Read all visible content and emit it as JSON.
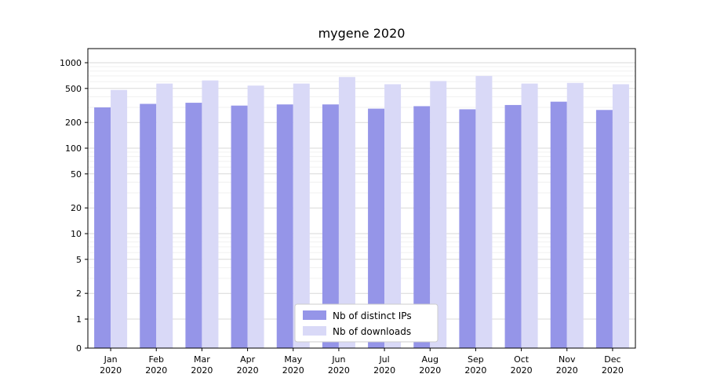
{
  "chart_data": {
    "type": "bar",
    "title": "mygene 2020",
    "categories": [
      "Jan",
      "Feb",
      "Mar",
      "Apr",
      "May",
      "Jun",
      "Jul",
      "Aug",
      "Sep",
      "Oct",
      "Nov",
      "Dec"
    ],
    "category_year": "2020",
    "series": [
      {
        "name": "Nb of distinct IPs",
        "color": "#9595e8",
        "values": [
          300,
          330,
          340,
          315,
          325,
          325,
          290,
          310,
          285,
          320,
          350,
          280
        ]
      },
      {
        "name": "Nb of downloads",
        "color": "#d9d9f7",
        "values": [
          480,
          570,
          620,
          540,
          570,
          680,
          560,
          610,
          700,
          570,
          580,
          560
        ]
      }
    ],
    "yscale": "symlog",
    "ylim": [
      0,
      1000
    ],
    "y_ticks": [
      0,
      1,
      2,
      5,
      10,
      20,
      50,
      100,
      200,
      500,
      1000
    ],
    "grid": "horizontal",
    "legend_position": "lower center",
    "colors": {
      "major_grid": "#d9d9d9",
      "minor_grid": "#f0f0f0",
      "axis": "#000000",
      "legend_border": "#cccccc",
      "background": "#ffffff"
    }
  }
}
